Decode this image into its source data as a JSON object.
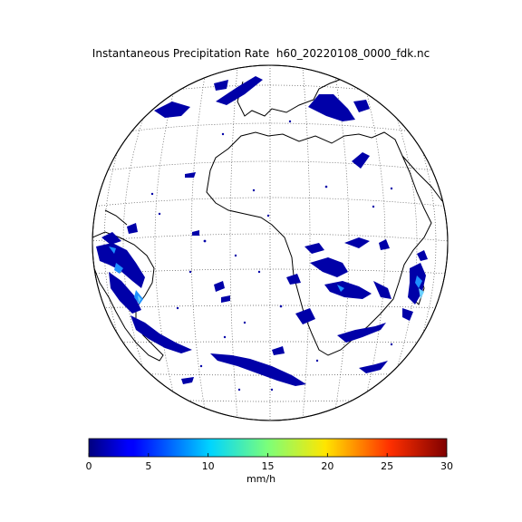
{
  "figure": {
    "title": "Instantaneous Precipitation Rate  h60_20220108_0000_fdk.nc"
  },
  "map": {
    "projection": "orthographic (full disk)",
    "graticule": "dotted",
    "coastlines": true,
    "precip_color": "#0000a8",
    "precip_light_color": "#1e90ff",
    "precip_high_color": "#6ad1ff"
  },
  "colorbar": {
    "label": "mm/h",
    "min": 0,
    "max": 30,
    "ticks": [
      "0",
      "5",
      "10",
      "15",
      "20",
      "25",
      "30"
    ],
    "colormap": "jet"
  }
}
